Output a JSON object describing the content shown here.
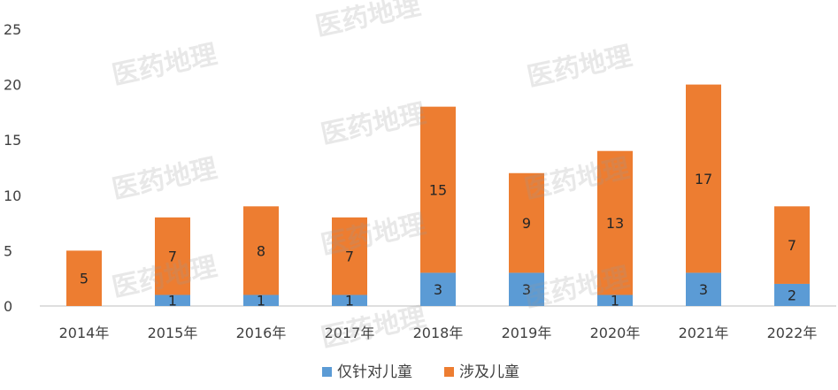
{
  "chart_data": {
    "type": "bar",
    "stacked": true,
    "categories": [
      "2014年",
      "2015年",
      "2016年",
      "2017年",
      "2018年",
      "2019年",
      "2020年",
      "2021年",
      "2022年"
    ],
    "series": [
      {
        "name": "仅针对儿童",
        "color": "#5B9BD5",
        "values": [
          0,
          1,
          1,
          1,
          3,
          3,
          1,
          3,
          2
        ]
      },
      {
        "name": "涉及儿童",
        "color": "#ED7D31",
        "values": [
          5,
          7,
          8,
          7,
          15,
          9,
          13,
          17,
          7
        ]
      }
    ],
    "ylim": [
      0,
      25
    ],
    "yticks": [
      0,
      5,
      10,
      15,
      20,
      25
    ],
    "grid": false,
    "legend": "bottom",
    "title": "",
    "xlabel": "",
    "ylabel": ""
  },
  "watermark": "医药地理"
}
